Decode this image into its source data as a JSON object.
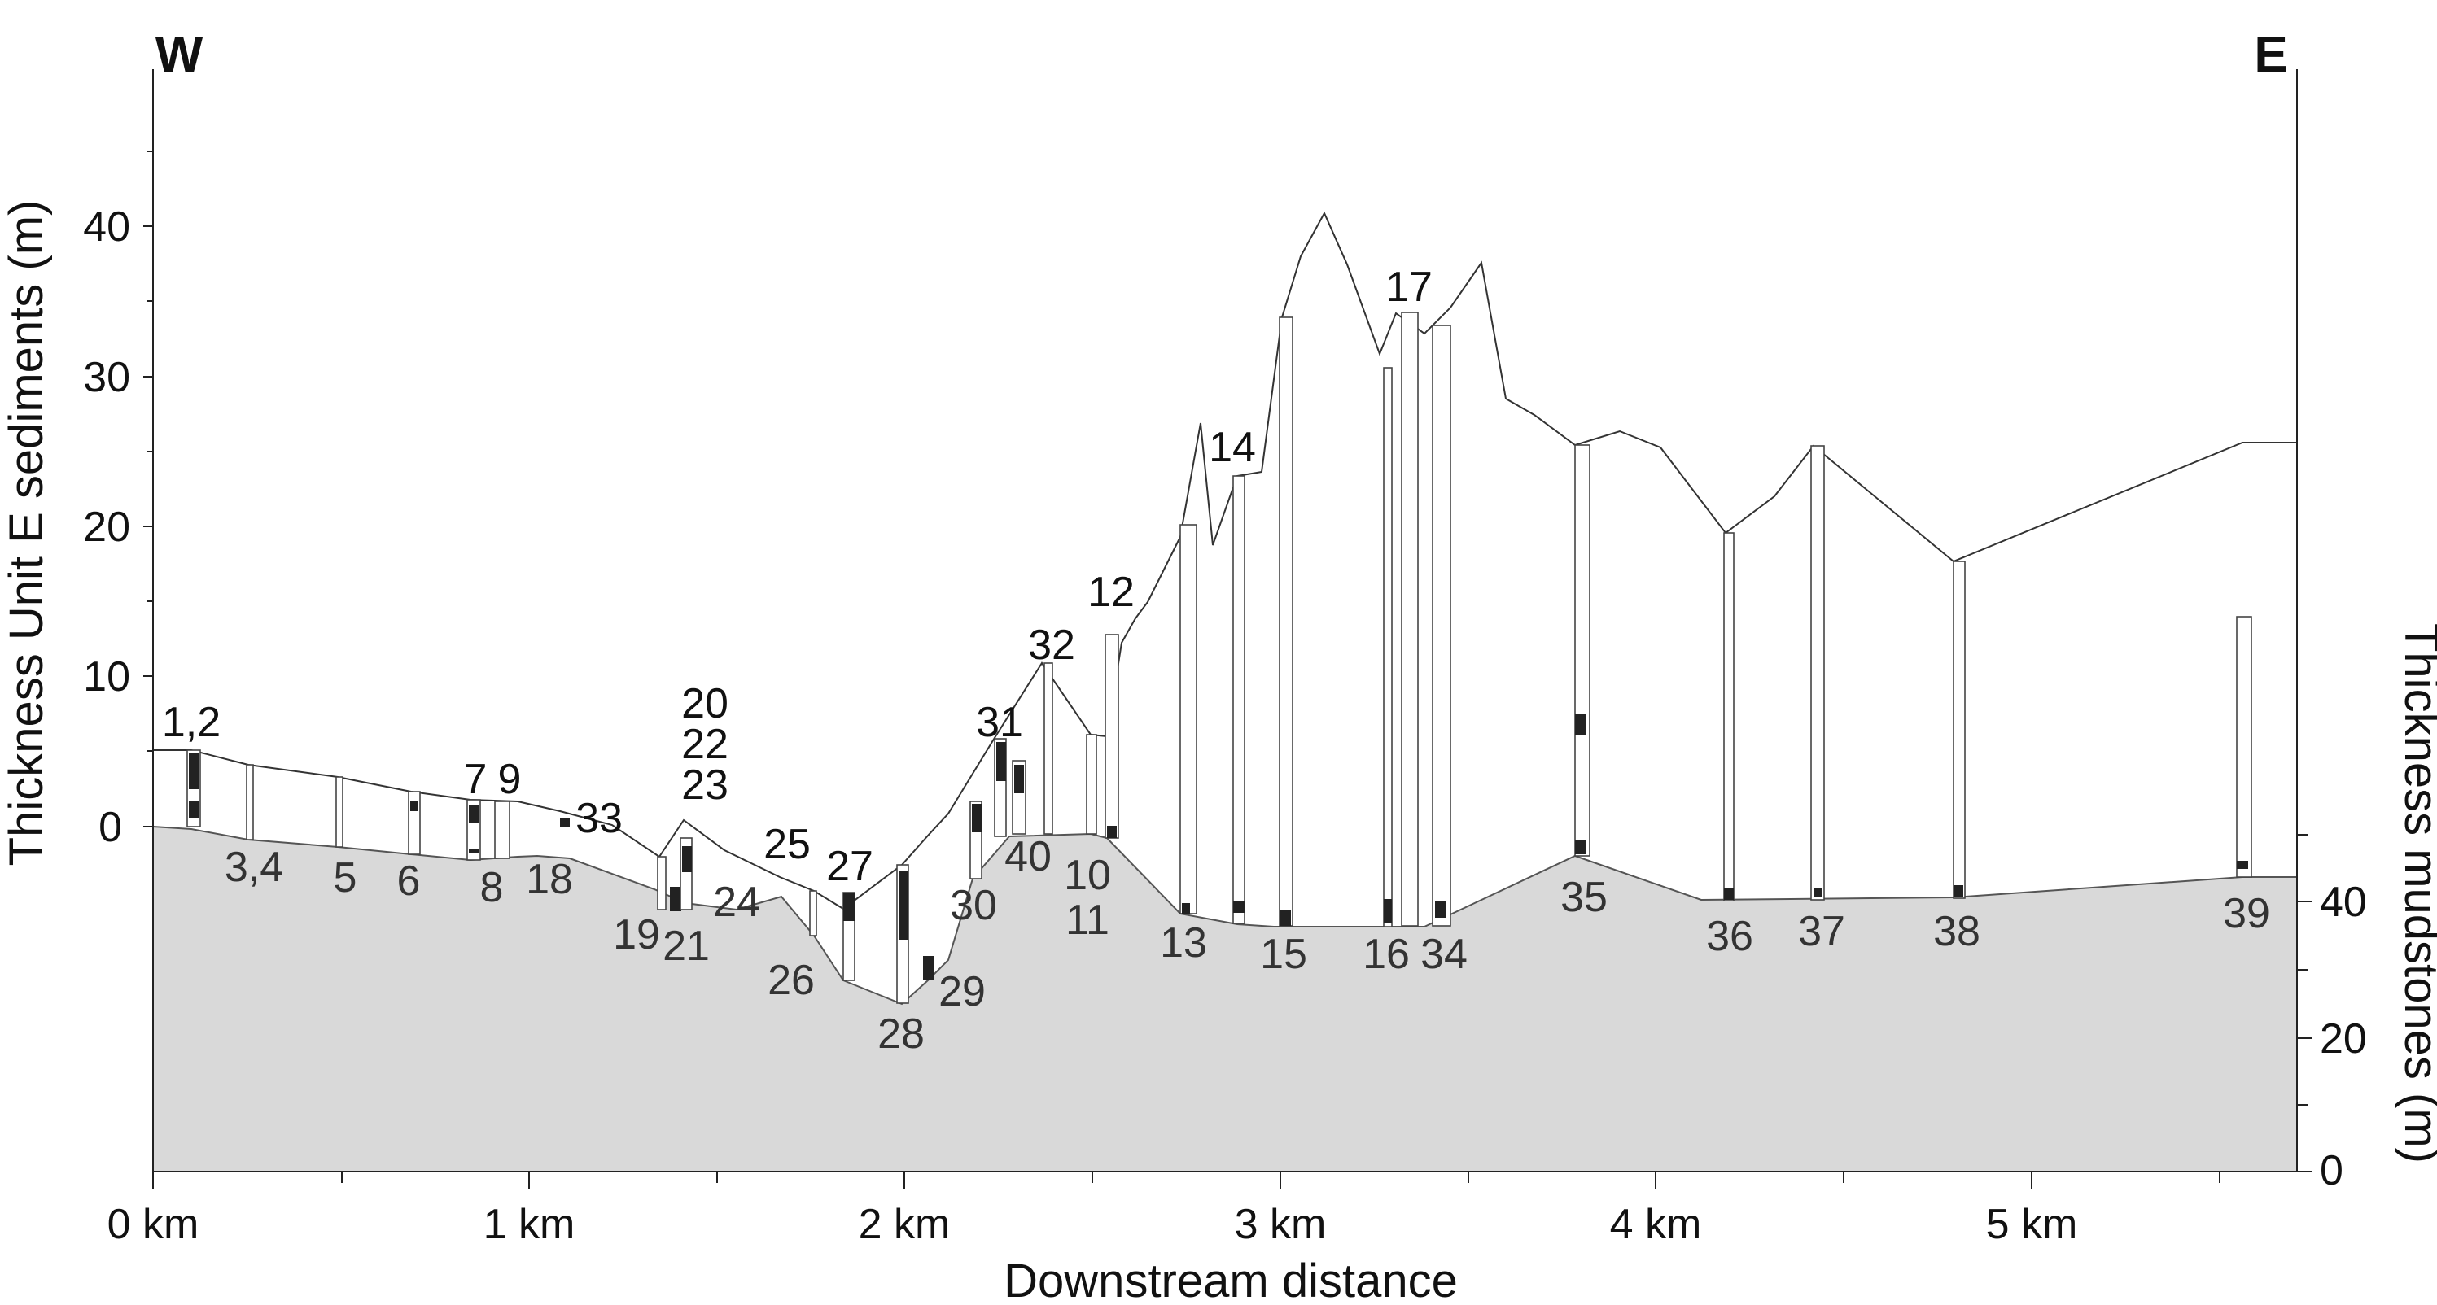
{
  "direction": {
    "west": "W",
    "east": "E"
  },
  "axes": {
    "left_title": "Thickness Unit E sediments (m)",
    "right_title": "Thickness mudstones (m)",
    "x_title": "Downstream distance",
    "left_ticks": [
      "40",
      "30",
      "20",
      "10",
      "0"
    ],
    "right_ticks": [
      "40",
      "20",
      "0"
    ],
    "x_ticks": [
      "0 km",
      "1 km",
      "2 km",
      "3 km",
      "4 km",
      "5 km"
    ]
  },
  "labels_above": [
    "1,2",
    "7",
    "9",
    "33",
    "20",
    "22",
    "23",
    "25",
    "27",
    "31",
    "32",
    "12",
    "14",
    "17"
  ],
  "labels_below": [
    "3,4",
    "5",
    "6",
    "8",
    "18",
    "19",
    "21",
    "24",
    "26",
    "28",
    "29",
    "30",
    "40",
    "10",
    "11",
    "13",
    "15",
    "16",
    "34",
    "35",
    "36",
    "37",
    "38",
    "39"
  ],
  "colors": {
    "mudstone_fill": "#d9d9d9",
    "line": "#333333"
  }
}
